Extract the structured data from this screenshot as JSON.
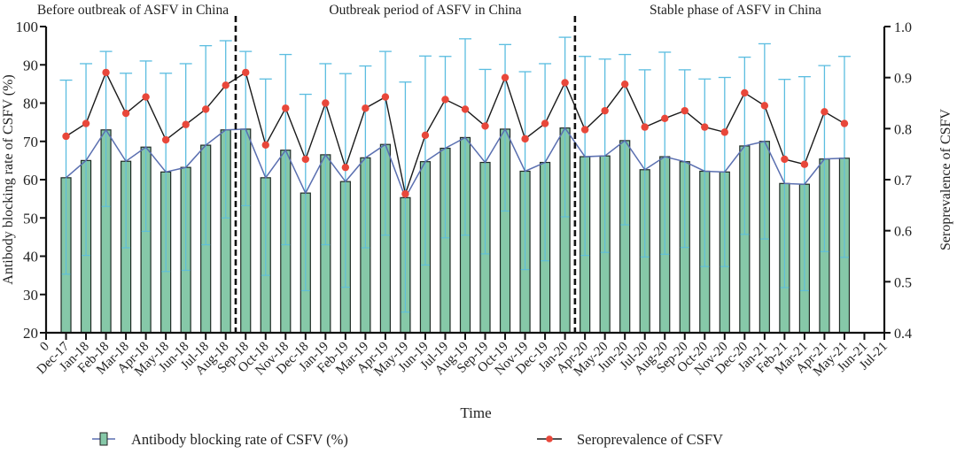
{
  "chart_data": {
    "type": "bar",
    "title": "",
    "xlabel": "Time",
    "ylabel": "Antibody blocking rate of CSFV (%)",
    "y2label": "Seroprevalence of CSFV",
    "ylim": [
      20,
      100
    ],
    "y2lim": [
      0.4,
      1.0
    ],
    "yticks": [
      "20",
      "30",
      "40",
      "50",
      "60",
      "70",
      "80",
      "90",
      "100"
    ],
    "y2ticks": [
      "0.4",
      "0.5",
      "0.6",
      "0.7",
      "0.8",
      "0.9",
      "1.0"
    ],
    "grid": false,
    "legend_position": "bottom",
    "phases": [
      {
        "label": "Before outbreak of ASFV in China"
      },
      {
        "label": "Outbreak period of ASFV in China"
      },
      {
        "label": "Stable phase of ASFV in China"
      }
    ],
    "phase_dividers_after": [
      "Aug-18",
      "Jan-20"
    ],
    "categories": [
      "0",
      "Dec-17",
      "Jan-18",
      "Feb-18",
      "Mar-18",
      "Apr-18",
      "May-18",
      "Jun-18",
      "Jul-18",
      "Aug-18",
      "Sep-18",
      "Oct-18",
      "Nov-18",
      "Dec-18",
      "Jan-19",
      "Feb-19",
      "Mar-19",
      "Apr-19",
      "May-19",
      "Jun-19",
      "Jul-19",
      "Aug-19",
      "Sep-19",
      "Oct-19",
      "Nov-19",
      "Dec-19",
      "Jan-20",
      "Apr-20",
      "May-20",
      "Jun-20",
      "Jul-20",
      "Aug-20",
      "Sep-20",
      "Oct-20",
      "Nov-20",
      "Dec-20",
      "Jan-21",
      "Feb-21",
      "Mar-21",
      "Apr-21",
      "May-21",
      "Jun-21",
      "Jul-21"
    ],
    "series": [
      {
        "name": "Antibody blocking rate of CSFV (%)",
        "type": "bar",
        "axis": "left",
        "color": "#86c8a8",
        "line_color": "#5a6fb0",
        "error_color": "#5bbde0",
        "values": [
          null,
          60.5,
          65.0,
          73.0,
          64.8,
          68.5,
          62.0,
          63.2,
          69.0,
          73.0,
          73.2,
          60.5,
          67.7,
          56.5,
          66.5,
          59.5,
          65.7,
          69.2,
          55.3,
          64.7,
          68.2,
          71.0,
          64.5,
          73.2,
          62.2,
          64.5,
          73.5,
          66.0,
          66.2,
          70.2,
          62.6,
          66.0,
          64.7,
          62.2,
          62.0,
          68.8,
          70.0,
          59.0,
          58.8,
          65.4,
          65.6,
          null,
          null
        ],
        "error_upper": [
          null,
          86.0,
          90.3,
          93.5,
          87.8,
          91.0,
          87.8,
          90.3,
          95.0,
          96.3,
          93.5,
          86.3,
          92.7,
          82.3,
          90.3,
          87.7,
          89.7,
          93.5,
          85.5,
          92.3,
          92.2,
          96.8,
          88.8,
          95.3,
          88.2,
          90.3,
          97.2,
          92.2,
          91.5,
          92.7,
          88.7,
          93.3,
          88.7,
          86.3,
          86.7,
          92.0,
          95.5,
          86.2,
          86.9,
          89.8,
          92.2,
          null,
          null
        ],
        "error_lower": [
          null,
          35.3,
          40.2,
          53.0,
          42.2,
          46.5,
          36.0,
          36.3,
          43.0,
          50.0,
          53.2,
          35.0,
          43.0,
          31.0,
          43.0,
          31.9,
          42.2,
          45.5,
          25.4,
          37.7,
          44.8,
          45.5,
          40.6,
          51.8,
          36.5,
          38.8,
          50.3,
          40.2,
          41.0,
          48.2,
          39.8,
          40.5,
          42.3,
          37.3,
          37.3,
          45.7,
          44.5,
          31.8,
          31.0,
          41.2,
          39.7,
          null,
          null
        ]
      },
      {
        "name": "Seroprevalence of CSFV",
        "type": "line",
        "axis": "right",
        "color": "#e8473a",
        "line_color": "#1a1a1a",
        "values": [
          null,
          0.785,
          0.81,
          0.91,
          0.83,
          0.862,
          0.778,
          0.808,
          0.838,
          0.885,
          0.91,
          0.768,
          0.84,
          0.74,
          0.85,
          0.724,
          0.84,
          0.862,
          0.672,
          0.787,
          0.857,
          0.838,
          0.805,
          0.9,
          0.78,
          0.81,
          0.89,
          0.798,
          0.835,
          0.887,
          0.803,
          0.82,
          0.835,
          0.803,
          0.793,
          0.87,
          0.845,
          0.74,
          0.73,
          0.833,
          0.81,
          null,
          null
        ]
      }
    ]
  },
  "legend": {
    "items": [
      {
        "label": "Antibody blocking rate of CSFV (%)"
      },
      {
        "label": "Seroprevalence of CSFV"
      }
    ]
  }
}
